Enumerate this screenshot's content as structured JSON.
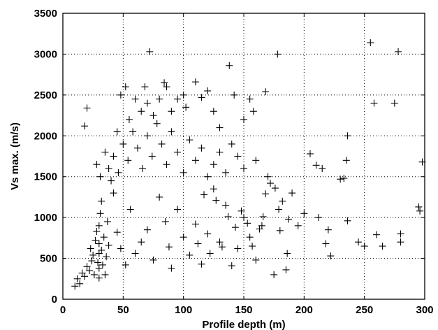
{
  "chart_data": {
    "type": "scatter",
    "title": "",
    "xlabel": "Profile depth (m)",
    "ylabel": "Vs max.  (m/s)",
    "xlim": [
      0,
      300
    ],
    "ylim": [
      0,
      3500
    ],
    "xticks": [
      0,
      50,
      100,
      150,
      200,
      250,
      300
    ],
    "yticks": [
      0,
      500,
      1000,
      1500,
      2000,
      2500,
      3000,
      3500
    ],
    "grid": true,
    "marker": "plus",
    "series": [
      {
        "points": [
          [
            10,
            160
          ],
          [
            12,
            250
          ],
          [
            14,
            190
          ],
          [
            16,
            320
          ],
          [
            18,
            280
          ],
          [
            20,
            400
          ],
          [
            22,
            350
          ],
          [
            23,
            620
          ],
          [
            24,
            470
          ],
          [
            25,
            540
          ],
          [
            26,
            300
          ],
          [
            27,
            720
          ],
          [
            28,
            830
          ],
          [
            29,
            450
          ],
          [
            30,
            260
          ],
          [
            30,
            380
          ],
          [
            30,
            560
          ],
          [
            30,
            680
          ],
          [
            30,
            900
          ],
          [
            31,
            1050
          ],
          [
            32,
            1200
          ],
          [
            32,
            600
          ],
          [
            33,
            420
          ],
          [
            34,
            760
          ],
          [
            35,
            300
          ],
          [
            36,
            520
          ],
          [
            37,
            950
          ],
          [
            38,
            660
          ],
          [
            40,
            1450
          ],
          [
            42,
            1300
          ],
          [
            45,
            820
          ],
          [
            48,
            620
          ],
          [
            52,
            420
          ],
          [
            56,
            1100
          ],
          [
            60,
            560
          ],
          [
            65,
            700
          ],
          [
            70,
            850
          ],
          [
            75,
            480
          ],
          [
            80,
            1250
          ],
          [
            85,
            950
          ],
          [
            88,
            640
          ],
          [
            90,
            380
          ],
          [
            95,
            1100
          ],
          [
            100,
            760
          ],
          [
            105,
            540
          ],
          [
            110,
            920
          ],
          [
            115,
            430
          ],
          [
            120,
            800
          ],
          [
            125,
            1350
          ],
          [
            130,
            700
          ],
          [
            135,
            1150
          ],
          [
            140,
            410
          ],
          [
            145,
            620
          ],
          [
            150,
            1000
          ],
          [
            155,
            760
          ],
          [
            160,
            480
          ],
          [
            165,
            900
          ],
          [
            170,
            1500
          ],
          [
            175,
            300
          ],
          [
            180,
            840
          ],
          [
            28,
            1650
          ],
          [
            31,
            1500
          ],
          [
            35,
            1800
          ],
          [
            38,
            1600
          ],
          [
            42,
            1750
          ],
          [
            46,
            1550
          ],
          [
            50,
            1900
          ],
          [
            54,
            1700
          ],
          [
            58,
            2050
          ],
          [
            62,
            1850
          ],
          [
            66,
            1600
          ],
          [
            70,
            2000
          ],
          [
            74,
            1750
          ],
          [
            78,
            2150
          ],
          [
            82,
            1900
          ],
          [
            86,
            1650
          ],
          [
            90,
            2050
          ],
          [
            95,
            1800
          ],
          [
            100,
            1550
          ],
          [
            105,
            1950
          ],
          [
            110,
            1700
          ],
          [
            115,
            1850
          ],
          [
            120,
            1500
          ],
          [
            125,
            1650
          ],
          [
            130,
            1800
          ],
          [
            135,
            1550
          ],
          [
            140,
            1900
          ],
          [
            145,
            1750
          ],
          [
            150,
            1600
          ],
          [
            160,
            1700
          ],
          [
            18,
            2120
          ],
          [
            20,
            2340
          ],
          [
            45,
            2050
          ],
          [
            48,
            2500
          ],
          [
            52,
            2600
          ],
          [
            55,
            2200
          ],
          [
            60,
            2450
          ],
          [
            65,
            2300
          ],
          [
            68,
            2600
          ],
          [
            70,
            2400
          ],
          [
            72,
            3030
          ],
          [
            75,
            2250
          ],
          [
            80,
            2450
          ],
          [
            84,
            2650
          ],
          [
            86,
            2600
          ],
          [
            90,
            2300
          ],
          [
            95,
            2450
          ],
          [
            100,
            2500
          ],
          [
            102,
            2350
          ],
          [
            110,
            2660
          ],
          [
            115,
            2470
          ],
          [
            120,
            2550
          ],
          [
            125,
            2300
          ],
          [
            130,
            2100
          ],
          [
            138,
            2860
          ],
          [
            142,
            2500
          ],
          [
            150,
            2200
          ],
          [
            155,
            2450
          ],
          [
            158,
            2300
          ],
          [
            168,
            2540
          ],
          [
            178,
            3000
          ],
          [
            190,
            1300
          ],
          [
            195,
            900
          ],
          [
            200,
            1050
          ],
          [
            205,
            1780
          ],
          [
            210,
            1640
          ],
          [
            212,
            1000
          ],
          [
            215,
            1600
          ],
          [
            218,
            680
          ],
          [
            220,
            850
          ],
          [
            222,
            530
          ],
          [
            230,
            1470
          ],
          [
            233,
            1480
          ],
          [
            235,
            1700
          ],
          [
            236,
            2000
          ],
          [
            236,
            960
          ],
          [
            245,
            700
          ],
          [
            250,
            650
          ],
          [
            255,
            3140
          ],
          [
            258,
            2400
          ],
          [
            260,
            790
          ],
          [
            265,
            650
          ],
          [
            275,
            2400
          ],
          [
            278,
            3030
          ],
          [
            280,
            800
          ],
          [
            280,
            700
          ],
          [
            295,
            1130
          ],
          [
            296,
            1080
          ],
          [
            298,
            1680
          ],
          [
            185,
            360
          ],
          [
            186,
            560
          ],
          [
            187,
            980
          ],
          [
            182,
            1200
          ],
          [
            179,
            1100
          ],
          [
            176,
            1360
          ],
          [
            172,
            1420
          ],
          [
            168,
            1290
          ],
          [
            166,
            1010
          ],
          [
            163,
            860
          ],
          [
            157,
            650
          ],
          [
            153,
            930
          ],
          [
            148,
            1080
          ],
          [
            143,
            880
          ],
          [
            137,
            1010
          ],
          [
            132,
            640
          ],
          [
            127,
            1210
          ],
          [
            122,
            560
          ],
          [
            117,
            1280
          ],
          [
            112,
            680
          ]
        ]
      }
    ]
  }
}
